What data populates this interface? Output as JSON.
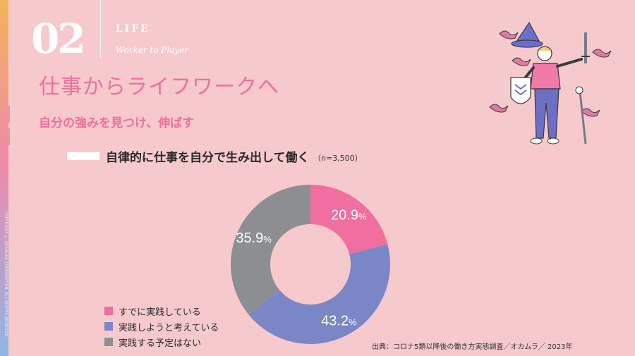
{
  "side": {
    "copyright": "COPYRIGHT © OKAMURA CORPORATION. ALL RIGHTS RESERVED."
  },
  "header": {
    "number": "02",
    "chapter_label": "LIFE",
    "chapter_sub": "Worker to Player"
  },
  "main": {
    "title": "仕事からライフワークへ",
    "subtitle": "自分の強みを見つけ、伸ばす"
  },
  "chart_data": {
    "type": "pie",
    "title": "自律的に仕事を自分で生み出して働く",
    "sample": "（n=3,500）",
    "donut": true,
    "slices": [
      {
        "label": "すでに実践している",
        "value": 20.9,
        "display": "20.9",
        "color": "#f06fa0"
      },
      {
        "label": "実践しようと考えている",
        "value": 43.2,
        "display": "43.2",
        "color": "#7b86c6"
      },
      {
        "label": "実践する予定はない",
        "value": 35.9,
        "display": "35.9",
        "color": "#8d8e91"
      }
    ],
    "unit": "%"
  },
  "source": "出典：コロナ5類以降後の働き方実態調査／オカムラ／ 2023年",
  "colors": {
    "background": "#f6c9cd",
    "accent": "#ee6fa0"
  }
}
